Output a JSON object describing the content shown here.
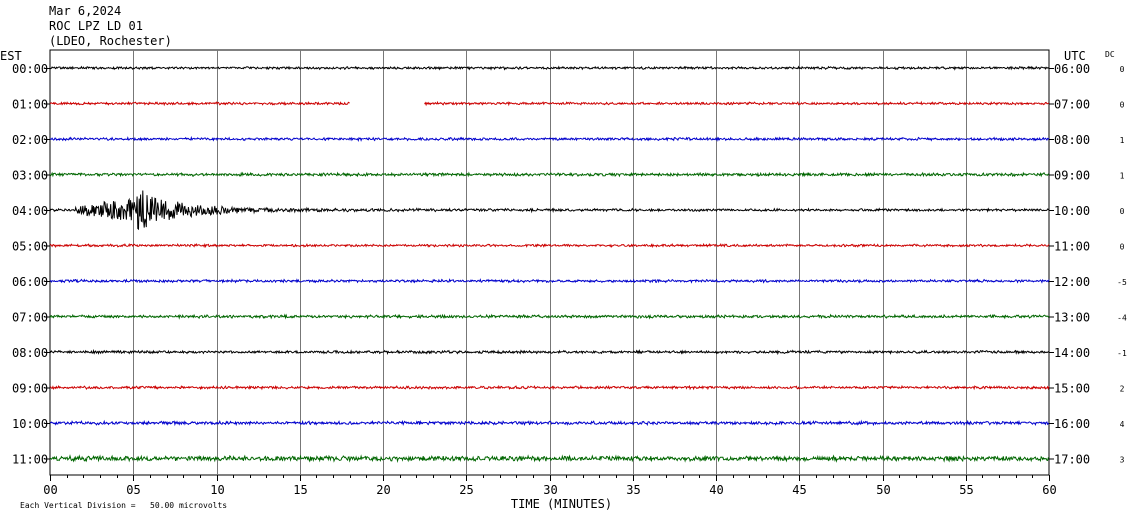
{
  "header": {
    "date": "Mar 6,2024",
    "station": "ROC LPZ LD 01",
    "network": "(LDEO, Rochester)"
  },
  "chart_data": {
    "type": "line",
    "left_axis_label": "EST",
    "right_axis_label": "UTC",
    "dc_label": "DC",
    "xlabel": "TIME (MINUTES)",
    "xlim": [
      0,
      60
    ],
    "x_ticks": [
      "00",
      "05",
      "10",
      "15",
      "20",
      "25",
      "30",
      "35",
      "40",
      "45",
      "50",
      "55",
      "60"
    ],
    "grid": true,
    "footnote": "Each Vertical Division =   50.00 microvolts",
    "rows": [
      {
        "est": "00:00",
        "utc": "06:00",
        "color": "#000000",
        "dc": "0",
        "amp": 1.0
      },
      {
        "est": "01:00",
        "utc": "07:00",
        "color": "#cc0000",
        "dc": "0",
        "amp": 1.0,
        "gap": [
          18.0,
          22.5
        ]
      },
      {
        "est": "02:00",
        "utc": "08:00",
        "color": "#0000cc",
        "dc": "1",
        "amp": 1.1
      },
      {
        "est": "03:00",
        "utc": "09:00",
        "color": "#006600",
        "dc": "1",
        "amp": 1.2
      },
      {
        "est": "04:00",
        "utc": "10:00",
        "color": "#000000",
        "dc": "0",
        "amp": 1.0,
        "event": {
          "start": 1.5,
          "peak": 5.2,
          "peak_amp": 20
        }
      },
      {
        "est": "05:00",
        "utc": "11:00",
        "color": "#cc0000",
        "dc": "0",
        "amp": 1.0
      },
      {
        "est": "06:00",
        "utc": "12:00",
        "color": "#0000cc",
        "dc": "-5",
        "amp": 1.1
      },
      {
        "est": "07:00",
        "utc": "13:00",
        "color": "#006600",
        "dc": "-4",
        "amp": 1.2
      },
      {
        "est": "08:00",
        "utc": "14:00",
        "color": "#000000",
        "dc": "-1",
        "amp": 1.1
      },
      {
        "est": "09:00",
        "utc": "15:00",
        "color": "#cc0000",
        "dc": "2",
        "amp": 1.1
      },
      {
        "est": "10:00",
        "utc": "16:00",
        "color": "#0000cc",
        "dc": "4",
        "amp": 1.3
      },
      {
        "est": "11:00",
        "utc": "17:00",
        "color": "#006600",
        "dc": "3",
        "amp": 2.0
      }
    ]
  }
}
